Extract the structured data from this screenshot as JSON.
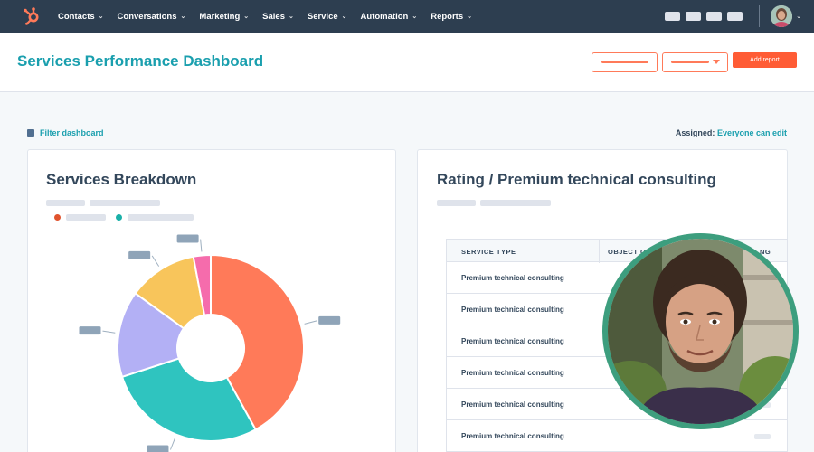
{
  "nav": {
    "items": [
      {
        "label": "Contacts"
      },
      {
        "label": "Conversations"
      },
      {
        "label": "Marketing"
      },
      {
        "label": "Sales"
      },
      {
        "label": "Service"
      },
      {
        "label": "Automation"
      },
      {
        "label": "Reports"
      }
    ],
    "logo_icon": "hubspot-sprocket-icon",
    "chevron_icon": "chevron-down-icon"
  },
  "header": {
    "title": "Services Performance Dashboard",
    "add_report_label": "Add report"
  },
  "filter": {
    "label": "Filter dashboard",
    "icon": "filter-icon"
  },
  "assigned": {
    "label": "Assigned:",
    "value": "Everyone can edit"
  },
  "left_card": {
    "title": "Services Breakdown"
  },
  "right_card": {
    "title": "Rating / Premium technical consulting",
    "table": {
      "columns": [
        "SERVICE TYPE",
        "OBJECT C",
        "NG"
      ],
      "rows": [
        "Premium technical consulting",
        "Premium technical consulting",
        "Premium technical consulting",
        "Premium technical consulting",
        "Premium technical consulting",
        "Premium technical consulting"
      ]
    }
  },
  "colors": {
    "nav_bg": "#2d3e50",
    "accent_teal": "#1a9fae",
    "accent_orange": "#ff5c35",
    "ring_green": "#3d9e7e"
  },
  "chart_data": {
    "type": "pie",
    "title": "Services Breakdown",
    "donut": true,
    "slices": [
      {
        "value": 42,
        "color": "#ff7a59"
      },
      {
        "value": 28,
        "color": "#2fc4bf"
      },
      {
        "value": 15,
        "color": "#b3b0f5"
      },
      {
        "value": 12,
        "color": "#f8c55b"
      },
      {
        "value": 3,
        "color": "#f56cac"
      }
    ],
    "legend": [
      {
        "color": "#e0532e"
      },
      {
        "color": "#1ab0a8"
      }
    ]
  }
}
